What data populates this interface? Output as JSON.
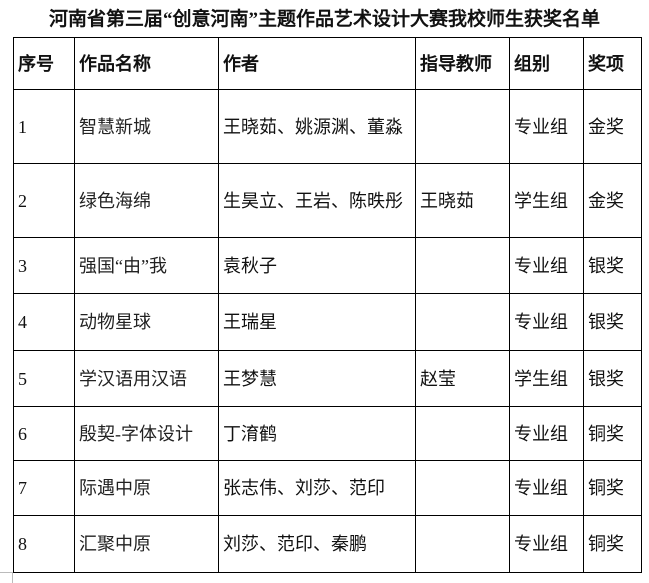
{
  "title": "河南省第三届“创意河南”主题作品艺术设计大赛我校师生获奖名单",
  "table": {
    "headers": [
      "序号",
      "作品名称",
      "作者",
      "指导教师",
      "组别",
      "奖项"
    ],
    "rows": [
      [
        "1",
        "智慧新城",
        "王晓茹、姚源渊、董淼",
        "",
        "专业组",
        "金奖"
      ],
      [
        "2",
        "绿色海绵",
        "生昊立、王岩、陈昳彤",
        "王晓茹",
        "学生组",
        "金奖"
      ],
      [
        "3",
        "强国“由”我",
        "袁秋子",
        "",
        "专业组",
        "银奖"
      ],
      [
        "4",
        "动物星球",
        "王瑞星",
        "",
        "专业组",
        "银奖"
      ],
      [
        "5",
        "学汉语用汉语",
        "王梦慧",
        "赵莹",
        "学生组",
        "银奖"
      ],
      [
        "6",
        "殷契-字体设计",
        "丁淯鹤",
        "",
        "专业组",
        "铜奖"
      ],
      [
        "7",
        "际遇中原",
        "张志伟、刘莎、范印",
        "",
        "专业组",
        "铜奖"
      ],
      [
        "8",
        "汇聚中原",
        "刘莎、范印、秦鹏",
        "",
        "专业组",
        "铜奖"
      ]
    ]
  }
}
